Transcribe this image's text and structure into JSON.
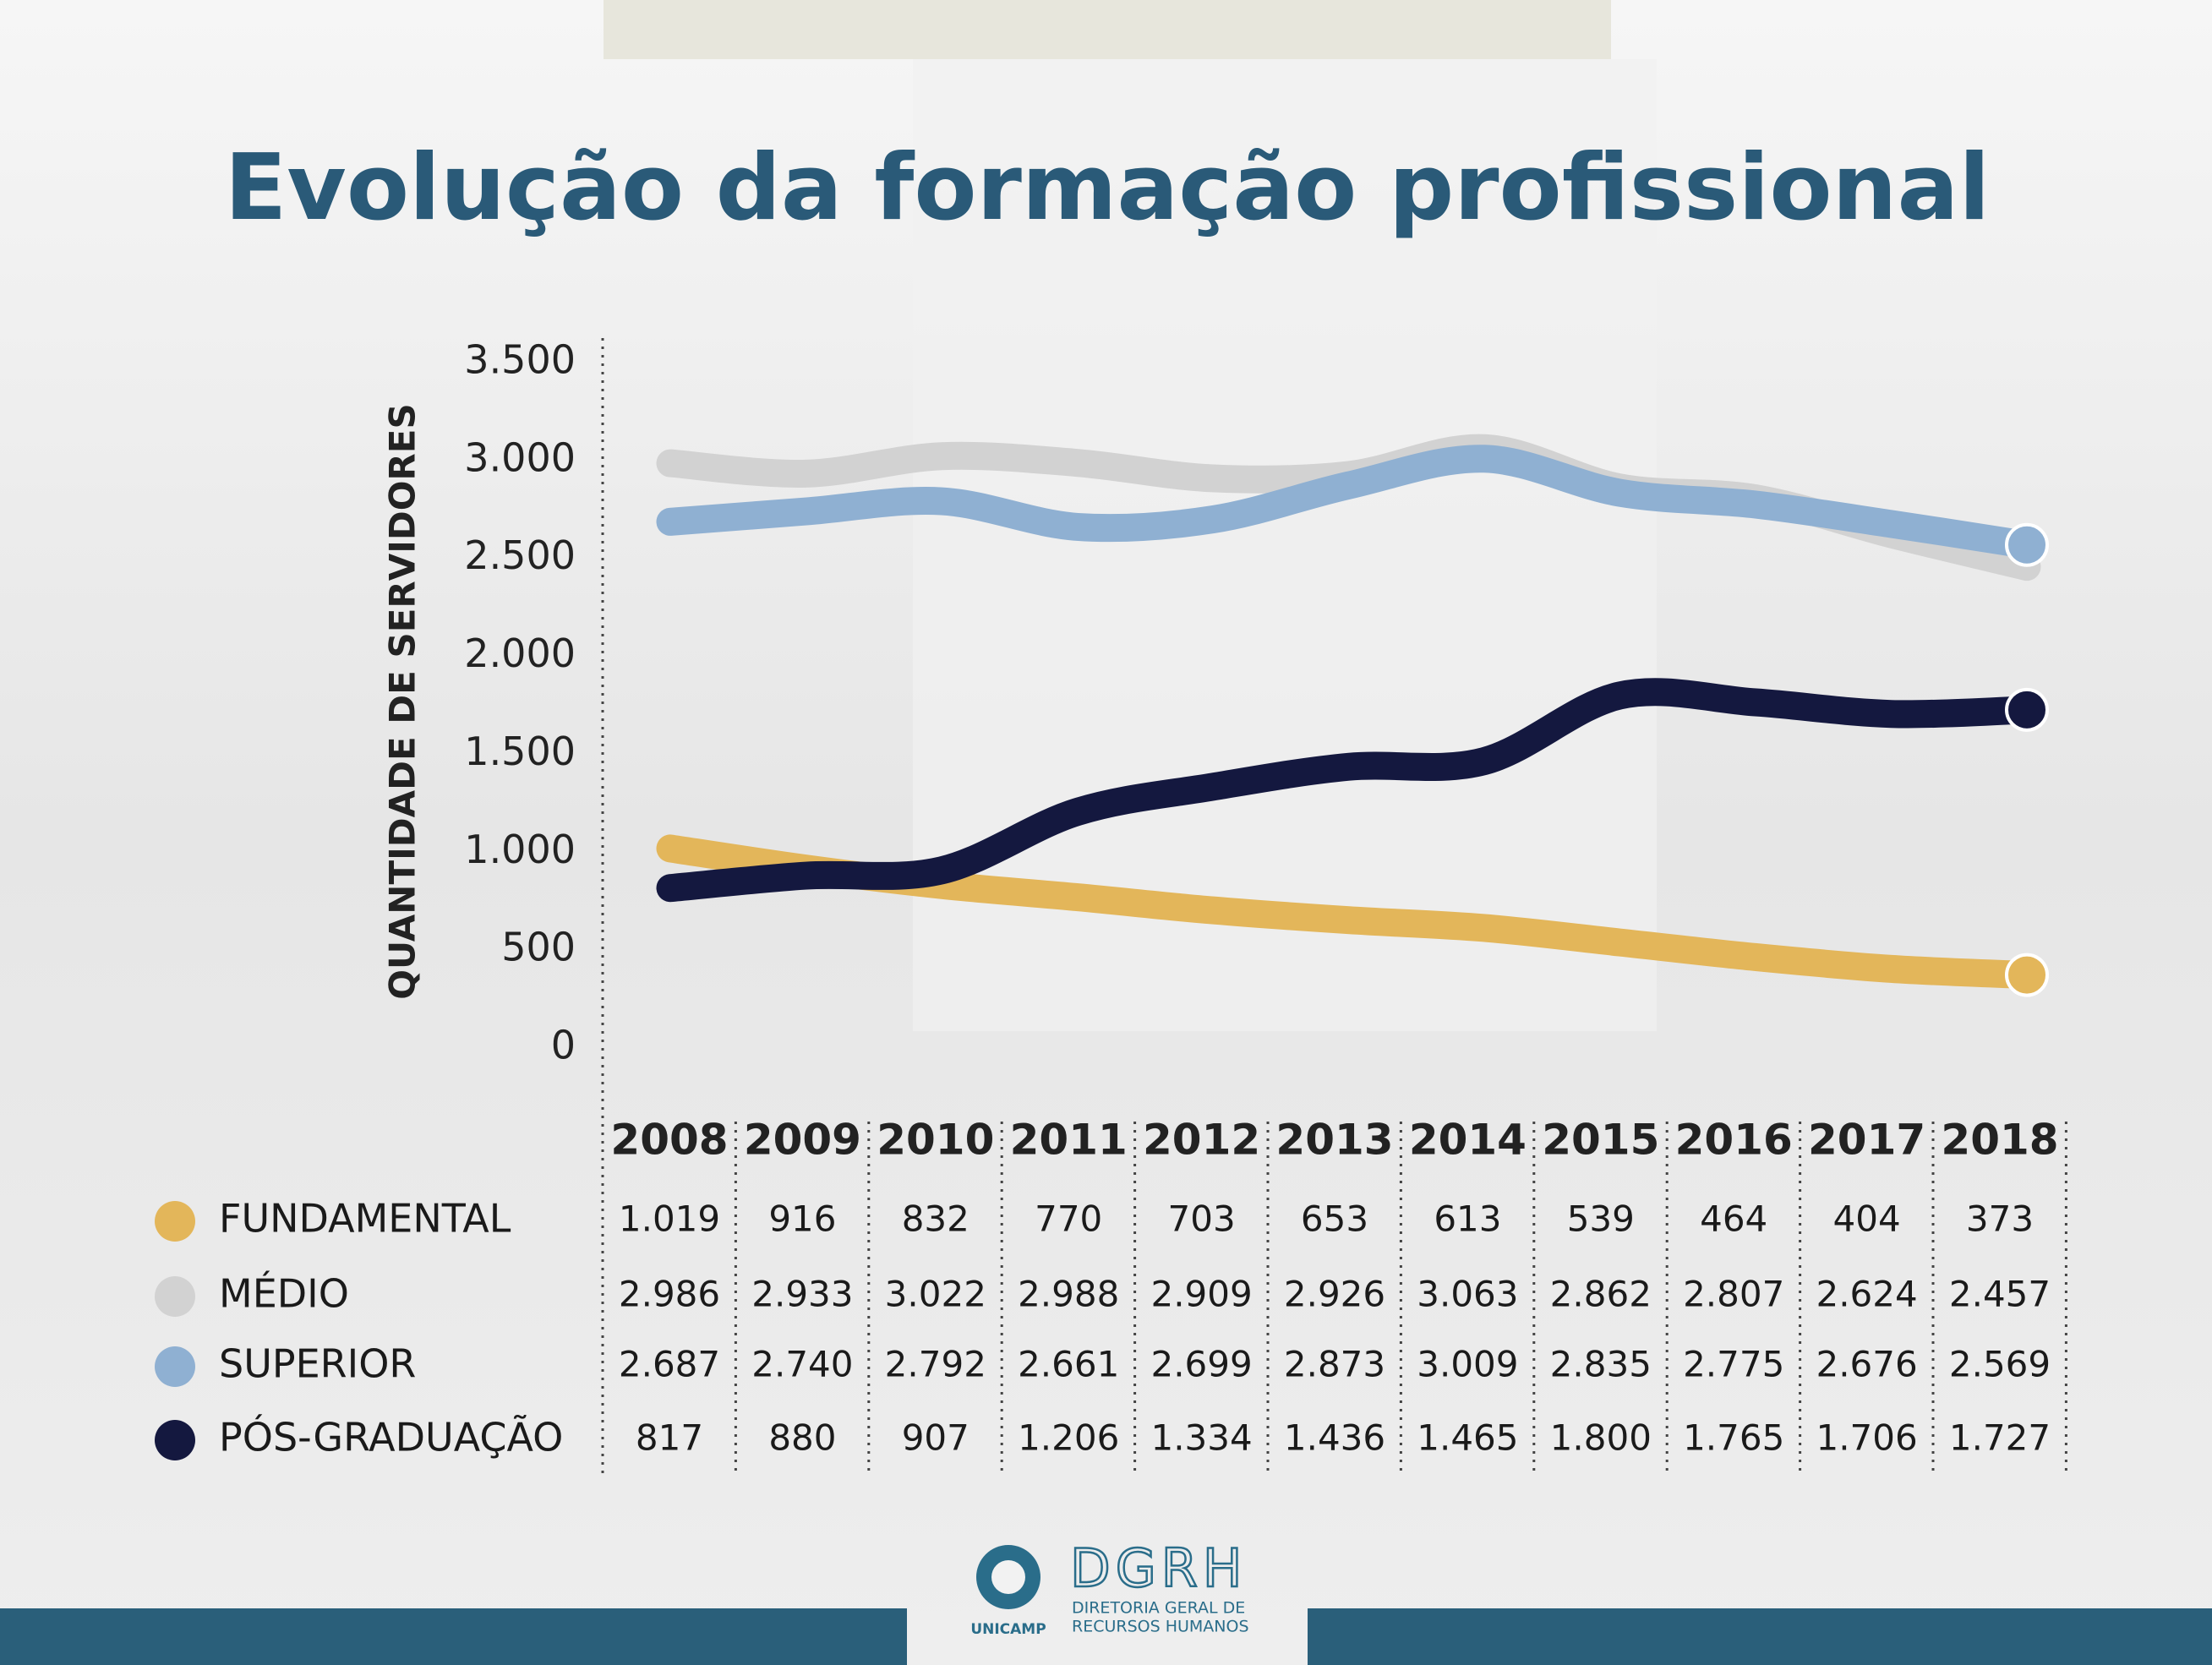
{
  "chart_data": {
    "type": "line",
    "title": "Evolução da formação profissional",
    "y_label": "QUANTIDADE DE SERVIDORES",
    "categories": [
      "2008",
      "2009",
      "2010",
      "2011",
      "2012",
      "2013",
      "2014",
      "2015",
      "2016",
      "2017",
      "2018"
    ],
    "series": [
      {
        "name": "FUNDAMENTAL",
        "color": "#e3b65a",
        "values": [
          1019,
          916,
          832,
          770,
          703,
          653,
          613,
          539,
          464,
          404,
          373
        ],
        "value_labels": [
          "1.019",
          "916",
          "832",
          "770",
          "703",
          "653",
          "613",
          "539",
          "464",
          "404",
          "373"
        ]
      },
      {
        "name": "MÉDIO",
        "color": "#d2d2d2",
        "values": [
          2986,
          2933,
          3022,
          2988,
          2909,
          2926,
          3063,
          2862,
          2807,
          2624,
          2457
        ],
        "value_labels": [
          "2.986",
          "2.933",
          "3.022",
          "2.988",
          "2.909",
          "2.926",
          "3.063",
          "2.862",
          "2.807",
          "2.624",
          "2.457"
        ]
      },
      {
        "name": "SUPERIOR",
        "color": "#8fb0d2",
        "values": [
          2687,
          2740,
          2792,
          2661,
          2699,
          2873,
          3009,
          2835,
          2775,
          2676,
          2569
        ],
        "value_labels": [
          "2.687",
          "2.740",
          "2.792",
          "2.661",
          "2.699",
          "2.873",
          "3.009",
          "2.835",
          "2.775",
          "2.676",
          "2.569"
        ]
      },
      {
        "name": "PÓS-GRADUAÇÃO",
        "color": "#14183f",
        "values": [
          817,
          880,
          907,
          1206,
          1334,
          1436,
          1465,
          1800,
          1765,
          1706,
          1727
        ],
        "value_labels": [
          "817",
          "880",
          "907",
          "1.206",
          "1.334",
          "1.436",
          "1.465",
          "1.800",
          "1.765",
          "1.706",
          "1.727"
        ]
      }
    ],
    "ylim": [
      0,
      3500
    ],
    "yticks": [
      0,
      500,
      {
        "value": 1000,
        "label": "1.000"
      },
      {
        "value": 1500,
        "label": "1.500"
      },
      {
        "value": 2000,
        "label": "2.000"
      },
      {
        "value": 2500,
        "label": "2.500"
      },
      {
        "value": 3000,
        "label": "3.000"
      },
      {
        "value": 3500,
        "label": "3.500"
      }
    ],
    "grid": false
  },
  "logo": {
    "name": "DGRH",
    "line1": "DIRETORIA GERAL DE",
    "line2": "RECURSOS HUMANOS",
    "org": "UNICAMP"
  }
}
